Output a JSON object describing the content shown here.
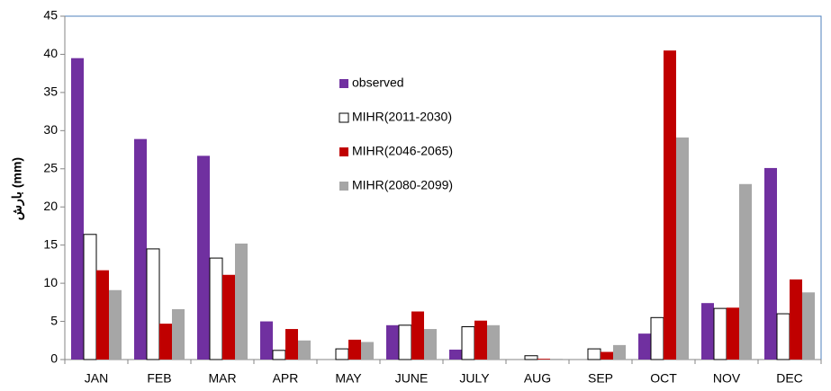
{
  "chart_data": {
    "type": "bar",
    "ylabel": "بارش (mm)",
    "categories": [
      "JAN",
      "FEB",
      "MAR",
      "APR",
      "MAY",
      "JUNE",
      "JULY",
      "AUG",
      "SEP",
      "OCT",
      "NOV",
      "DEC"
    ],
    "series": [
      {
        "name": "observed",
        "color": "#7030a0",
        "values": [
          39.5,
          28.9,
          26.7,
          5.0,
          0,
          4.5,
          1.3,
          0,
          0,
          3.4,
          7.4,
          25.1
        ]
      },
      {
        "name": "MIHR(2011-2030)",
        "color": "#ffffff",
        "edgecolor": "#000000",
        "values": [
          16.4,
          14.5,
          13.3,
          1.2,
          1.4,
          4.5,
          4.3,
          0.5,
          1.4,
          5.5,
          6.7,
          6.0
        ]
      },
      {
        "name": "MIHR(2046-2065)",
        "color": "#c00000",
        "values": [
          11.7,
          4.7,
          11.1,
          4.0,
          2.6,
          6.3,
          5.1,
          0.1,
          1.0,
          40.5,
          6.8,
          10.5
        ]
      },
      {
        "name": "MIHR(2080-2099)",
        "color": "#a6a6a6",
        "values": [
          9.1,
          6.6,
          15.2,
          2.5,
          2.3,
          4.0,
          4.5,
          0.1,
          1.9,
          29.1,
          23.0,
          8.8
        ]
      }
    ],
    "ylim": [
      0,
      45
    ],
    "yticks": [
      0,
      5,
      10,
      15,
      20,
      25,
      30,
      35,
      40,
      45
    ],
    "grid": false,
    "legend": "upper center"
  }
}
